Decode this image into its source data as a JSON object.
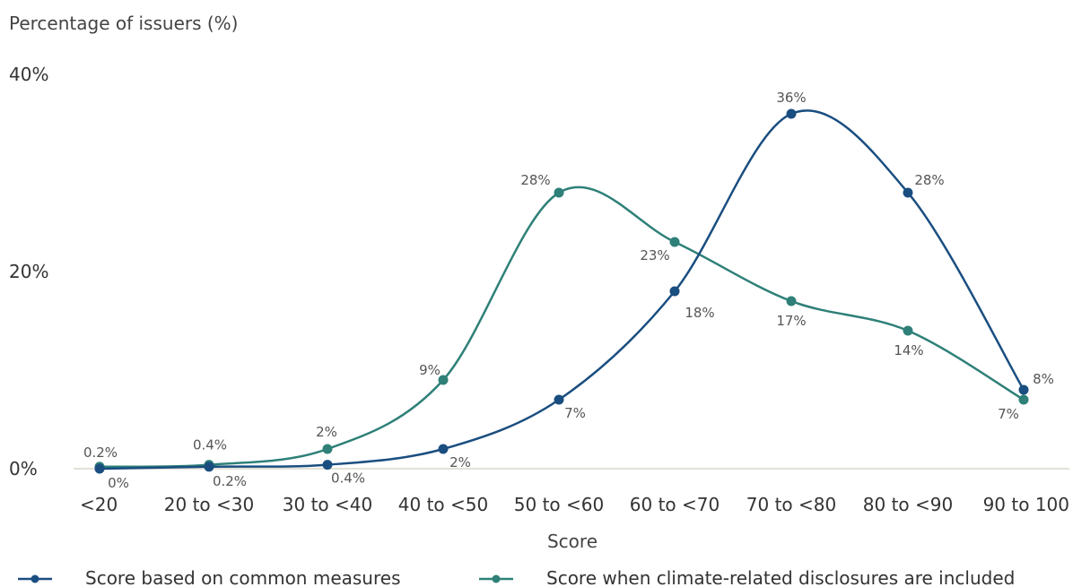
{
  "chart_data": {
    "type": "line",
    "ylabel": "Percentage of issuers (%)",
    "xlabel": "Score",
    "ylim": [
      0,
      40
    ],
    "yticks": [
      "0%",
      "20%",
      "40%"
    ],
    "yticks_values": [
      0,
      20,
      40
    ],
    "categories": [
      "<20",
      "20 to <30",
      "30 to <40",
      "40 to <50",
      "50 to <60",
      "60 to <70",
      "70 to <80",
      "80 to <90",
      "90 to 100"
    ],
    "grid": false,
    "legend": "bottom",
    "series": [
      {
        "name": "Score based on common measures",
        "color": "#1a4e80",
        "values": [
          0,
          0.2,
          0.4,
          2,
          7,
          18,
          36,
          28,
          8
        ],
        "labels": [
          "0%",
          "0.2%",
          "0.4%",
          "2%",
          "7%",
          "18%",
          "36%",
          "28%",
          "8%"
        ]
      },
      {
        "name": "Score when climate-related disclosures are included",
        "color": "#2e8078",
        "values": [
          0.2,
          0.4,
          2,
          9,
          28,
          23,
          17,
          14,
          7
        ],
        "labels": [
          "0.2%",
          "0.4%",
          "2%",
          "9%",
          "28%",
          "23%",
          "17%",
          "14%",
          "7%"
        ]
      }
    ]
  }
}
